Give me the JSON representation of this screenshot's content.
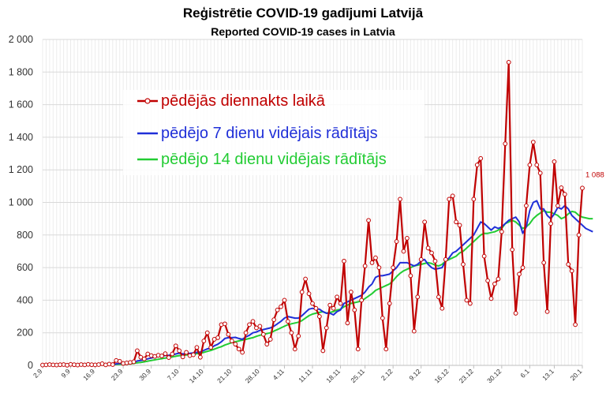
{
  "chart_data": {
    "type": "line",
    "title": "Reģistrētie COVID-19 gadījumi Latvijā",
    "subtitle": "Reported COVID-19 cases in Latvia",
    "ylim": [
      0,
      2000
    ],
    "yticks": [
      0,
      200,
      400,
      600,
      800,
      1000,
      1200,
      1400,
      1600,
      1800,
      2000
    ],
    "ytick_labels": [
      "0",
      "200",
      "400",
      "600",
      "800",
      "1 000",
      "1 200",
      "1 400",
      "1 600",
      "1 800",
      "2 000"
    ],
    "x_start": "2.9",
    "x_end": "20.1",
    "xtick_labels": [
      "2.9",
      "9.9",
      "16.9",
      "23.9",
      "30.9",
      "7.10",
      "14.10",
      "21.10",
      "28.10",
      "4.11",
      "11.11",
      "18.11",
      "25.11",
      "2.12",
      "9.12",
      "16.12",
      "23.12",
      "30.12",
      "6.1",
      "13.1",
      "20.1"
    ],
    "grid": true,
    "legend_position": "top-left",
    "series": [
      {
        "name": "pēdējās diennakts laikā",
        "color": "#c00000",
        "markers": true,
        "values": [
          2,
          3,
          5,
          3,
          2,
          4,
          5,
          1,
          6,
          4,
          2,
          5,
          3,
          6,
          4,
          3,
          5,
          10,
          3,
          8,
          5,
          30,
          25,
          12,
          15,
          18,
          22,
          90,
          50,
          40,
          70,
          60,
          55,
          62,
          58,
          72,
          48,
          70,
          120,
          90,
          52,
          80,
          60,
          65,
          110,
          50,
          150,
          200,
          110,
          160,
          170,
          250,
          255,
          190,
          150,
          130,
          100,
          80,
          200,
          250,
          270,
          230,
          240,
          190,
          130,
          160,
          280,
          340,
          360,
          400,
          270,
          200,
          100,
          180,
          450,
          530,
          440,
          380,
          350,
          300,
          90,
          230,
          370,
          350,
          420,
          380,
          640,
          260,
          450,
          340,
          100,
          400,
          610,
          890,
          630,
          660,
          600,
          290,
          100,
          380,
          600,
          760,
          1020,
          700,
          780,
          550,
          210,
          420,
          650,
          880,
          720,
          690,
          640,
          420,
          350,
          650,
          1020,
          1040,
          880,
          860,
          620,
          400,
          380,
          1020,
          1230,
          1270,
          670,
          520,
          410,
          500,
          530,
          820,
          1360,
          1860,
          710,
          320,
          560,
          600,
          980,
          1230,
          1370,
          1230,
          1180,
          630,
          330,
          870,
          1250,
          980,
          1090,
          1050,
          620,
          580,
          250,
          800,
          1088
        ],
        "end_label": "1 088"
      },
      {
        "name": "pēdējo 7 dienu vidējais rādītājs",
        "color": "#1f2fd8",
        "markers": false,
        "values": [
          3,
          3,
          3,
          3,
          4,
          4,
          4,
          4,
          4,
          4,
          4,
          4,
          4,
          4,
          4,
          4,
          5,
          5,
          5,
          6,
          6,
          9,
          12,
          13,
          14,
          15,
          17,
          27,
          30,
          34,
          40,
          45,
          50,
          55,
          56,
          61,
          62,
          64,
          70,
          75,
          70,
          72,
          74,
          76,
          80,
          82,
          92,
          101,
          106,
          120,
          130,
          145,
          165,
          170,
          170,
          172,
          165,
          160,
          175,
          185,
          200,
          205,
          215,
          220,
          225,
          230,
          240,
          255,
          270,
          290,
          300,
          295,
          290,
          290,
          305,
          325,
          345,
          350,
          345,
          345,
          330,
          320,
          320,
          310,
          330,
          340,
          380,
          390,
          400,
          410,
          420,
          430,
          450,
          480,
          500,
          540,
          550,
          550,
          555,
          560,
          580,
          600,
          630,
          630,
          630,
          620,
          610,
          620,
          640,
          650,
          620,
          600,
          590,
          595,
          600,
          640,
          660,
          690,
          700,
          720,
          740,
          760,
          780,
          800,
          840,
          880,
          870,
          850,
          830,
          850,
          840,
          850,
          870,
          890,
          900,
          910,
          880,
          810,
          850,
          950,
          1000,
          1010,
          960,
          960,
          920,
          900,
          930,
          970,
          960,
          980,
          960,
          920,
          900,
          880,
          860,
          840,
          830,
          820
        ],
        "end_label": ""
      },
      {
        "name": "pēdējo 14 dienu vidējais rādītājs",
        "color": "#22cc33",
        "markers": false,
        "values": [
          3,
          3,
          3,
          3,
          3,
          3,
          4,
          4,
          4,
          4,
          4,
          4,
          4,
          4,
          4,
          4,
          4,
          4,
          5,
          5,
          5,
          6,
          7,
          8,
          9,
          10,
          12,
          16,
          18,
          22,
          26,
          30,
          34,
          38,
          41,
          45,
          48,
          52,
          56,
          60,
          62,
          64,
          66,
          68,
          72,
          74,
          80,
          86,
          92,
          100,
          108,
          115,
          125,
          132,
          140,
          145,
          150,
          155,
          160,
          165,
          170,
          178,
          185,
          190,
          195,
          200,
          210,
          220,
          230,
          240,
          250,
          255,
          260,
          265,
          275,
          290,
          305,
          315,
          320,
          325,
          330,
          320,
          325,
          330,
          340,
          345,
          360,
          370,
          380,
          385,
          390,
          395,
          410,
          425,
          440,
          460,
          470,
          480,
          490,
          500,
          520,
          545,
          565,
          580,
          590,
          600,
          610,
          615,
          620,
          625,
          630,
          625,
          615,
          610,
          620,
          640,
          650,
          660,
          670,
          690,
          700,
          720,
          740,
          760,
          780,
          800,
          810,
          810,
          815,
          820,
          830,
          840,
          870,
          880,
          890,
          880,
          860,
          840,
          850,
          870,
          900,
          920,
          935,
          950,
          940,
          940,
          930,
          920,
          900,
          910,
          930,
          945,
          940,
          920,
          910,
          905,
          900,
          900
        ],
        "end_label": ""
      }
    ]
  }
}
